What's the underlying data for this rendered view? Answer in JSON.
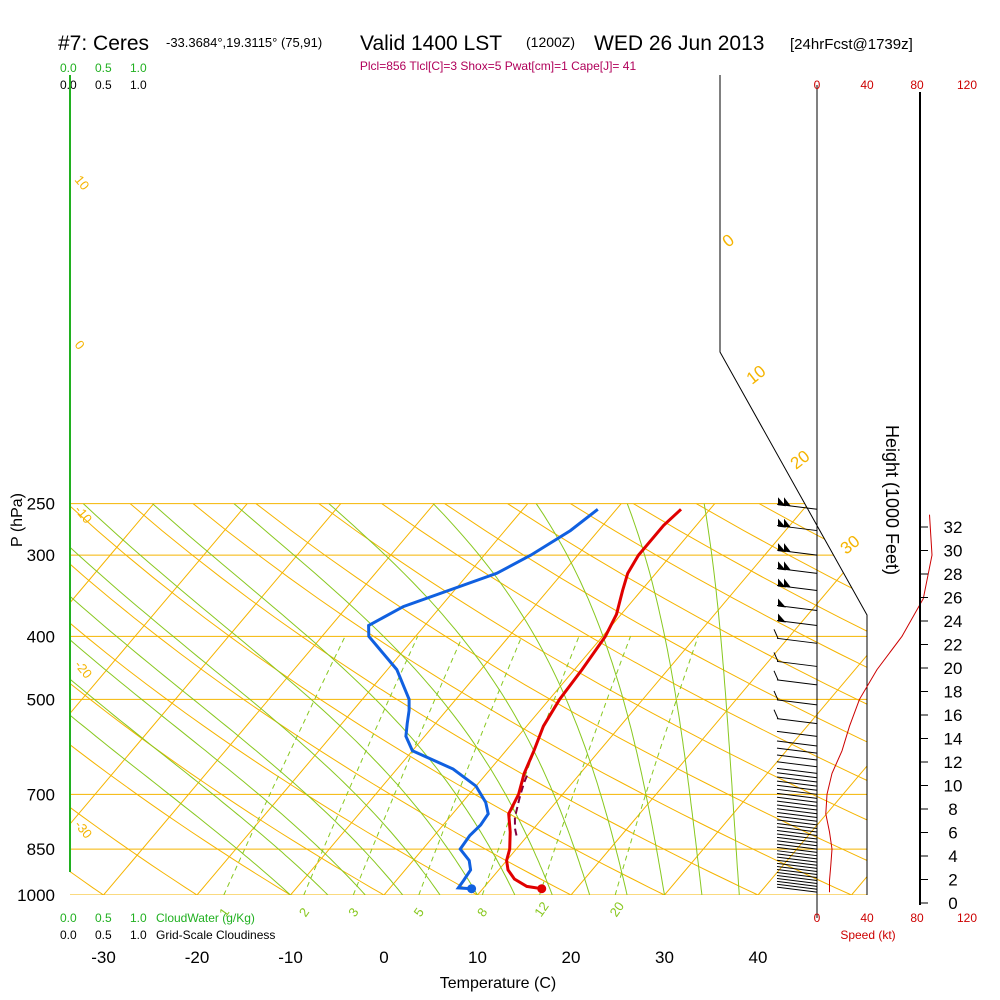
{
  "header": {
    "station": "#7: Ceres",
    "coords": "-33.3684°,19.3115° (75,91)",
    "valid": "Valid 1400 LST",
    "zulu": "(1200Z)",
    "date": "WED 26 Jun 2013",
    "forecast": "[24hrFcst@1739z]",
    "params": "Plcl=856 Tlcl[C]=3 Shox=5 Pwat[cm]=1 Cape[J]= 41"
  },
  "legend": {
    "cloudwater_ticks": [
      "0.0",
      "0.5",
      "1.0"
    ],
    "cloudwater_label": "CloudWater (g/Kg)",
    "cloudiness_ticks": [
      "0.0",
      "0.5",
      "1.0"
    ],
    "cloudiness_label": "Grid-Scale Cloudiness",
    "top_green": [
      "0.0",
      "0.5",
      "1.0"
    ],
    "top_black": [
      "0.0",
      "0.5",
      "1.0"
    ]
  },
  "colors": {
    "isotherm": "#f5b400",
    "adiabat": "#88c820",
    "temperature": "#e00000",
    "dewpoint": "#1060e0",
    "parcel": "#800040",
    "cloudwater": "#20b020",
    "speed": "#cc0000",
    "params": "#b0005a"
  },
  "chart_data": {
    "type": "line",
    "title": "",
    "xlabel": "Temperature (C)",
    "ylabel": "P (hPa)",
    "right_label": "Height (1000 Feet)",
    "speed_label": "Speed (kt)",
    "x_ticks": [
      "-30",
      "-20",
      "-10",
      "0",
      "10",
      "20",
      "30",
      "40"
    ],
    "x_tick_values": [
      -30,
      -20,
      -10,
      0,
      10,
      20,
      30,
      40
    ],
    "p_ticks": [
      "250",
      "300",
      "400",
      "500",
      "700",
      "850",
      "1000"
    ],
    "p_tick_values": [
      250,
      300,
      400,
      500,
      700,
      850,
      1000
    ],
    "height_ticks": [
      "0",
      "2",
      "4",
      "6",
      "8",
      "10",
      "12",
      "14",
      "16",
      "18",
      "20",
      "22",
      "24",
      "26",
      "28",
      "30",
      "32"
    ],
    "speed_ticks_top": [
      "0",
      "40",
      "80",
      "120"
    ],
    "speed_ticks_bottom": [
      "0",
      "40",
      "80",
      "120"
    ],
    "mixing_ratio_labels": [
      "1",
      "2",
      "3",
      "5",
      "8",
      "12",
      "20"
    ],
    "adiabat_labels": [
      "10",
      "0",
      "-10",
      "-20",
      "-30"
    ],
    "isotherm_labels": [
      "0",
      "10",
      "20",
      "30"
    ],
    "series": [
      {
        "name": "temperature",
        "points": [
          [
            16.3,
            978
          ],
          [
            14.5,
            970
          ],
          [
            12.5,
            945
          ],
          [
            11,
            915
          ],
          [
            10,
            885
          ],
          [
            9.3,
            850
          ],
          [
            7.8,
            800
          ],
          [
            6,
            750
          ],
          [
            5.3,
            700
          ],
          [
            4,
            650
          ],
          [
            3,
            600
          ],
          [
            1.8,
            550
          ],
          [
            1.1,
            500
          ],
          [
            0.8,
            450
          ],
          [
            0.3,
            400
          ],
          [
            -0.5,
            370
          ],
          [
            -2,
            340
          ],
          [
            -3,
            320
          ],
          [
            -3.5,
            300
          ],
          [
            -3.5,
            270
          ],
          [
            -3.1,
            255
          ]
        ]
      },
      {
        "name": "dewpoint",
        "points": [
          [
            8.8,
            978
          ],
          [
            7.3,
            975
          ],
          [
            7.2,
            950
          ],
          [
            7,
            915
          ],
          [
            6,
            885
          ],
          [
            4,
            850
          ],
          [
            3.8,
            810
          ],
          [
            4,
            780
          ],
          [
            3.8,
            750
          ],
          [
            2.5,
            720
          ],
          [
            0,
            680
          ],
          [
            -4,
            640
          ],
          [
            -10,
            600
          ],
          [
            -12,
            570
          ],
          [
            -13,
            545
          ],
          [
            -14,
            520
          ],
          [
            -15,
            500
          ],
          [
            -19,
            450
          ],
          [
            -25,
            400
          ],
          [
            -26,
            385
          ],
          [
            -24,
            360
          ],
          [
            -17,
            320
          ],
          [
            -15,
            300
          ],
          [
            -13,
            275
          ],
          [
            -12,
            255
          ]
        ]
      },
      {
        "name": "parcel",
        "points": [
          [
            8.8,
            810
          ],
          [
            8,
            790
          ],
          [
            7,
            760
          ],
          [
            6,
            720
          ],
          [
            5.5,
            700
          ],
          [
            4.8,
            670
          ],
          [
            4.5,
            655
          ]
        ]
      }
    ],
    "wind_speed_kt": [
      {
        "p": 990,
        "speed": 10
      },
      {
        "p": 950,
        "speed": 10
      },
      {
        "p": 900,
        "speed": 11
      },
      {
        "p": 850,
        "speed": 12
      },
      {
        "p": 800,
        "speed": 10
      },
      {
        "p": 750,
        "speed": 7
      },
      {
        "p": 700,
        "speed": 8
      },
      {
        "p": 650,
        "speed": 12
      },
      {
        "p": 600,
        "speed": 20
      },
      {
        "p": 550,
        "speed": 26
      },
      {
        "p": 500,
        "speed": 34
      },
      {
        "p": 450,
        "speed": 48
      },
      {
        "p": 400,
        "speed": 68
      },
      {
        "p": 350,
        "speed": 85
      },
      {
        "p": 300,
        "speed": 92
      },
      {
        "p": 260,
        "speed": 90
      }
    ],
    "wind_barb_pressures": [
      255,
      275,
      300,
      320,
      340,
      365,
      385,
      410,
      445,
      475,
      510,
      545,
      570,
      590,
      605,
      620,
      635,
      650,
      660,
      670,
      680,
      690,
      700,
      710,
      720,
      730,
      740,
      750,
      760,
      770,
      780,
      790,
      800,
      810,
      820,
      830,
      840,
      850,
      860,
      870,
      880,
      890,
      900,
      910,
      920,
      930,
      940,
      950,
      960,
      970,
      980,
      990
    ],
    "wind_flags": {
      "255": 2,
      "280": 2,
      "300": 1,
      "320": 1,
      "340": 1,
      "365": 1,
      "385": 2
    }
  }
}
